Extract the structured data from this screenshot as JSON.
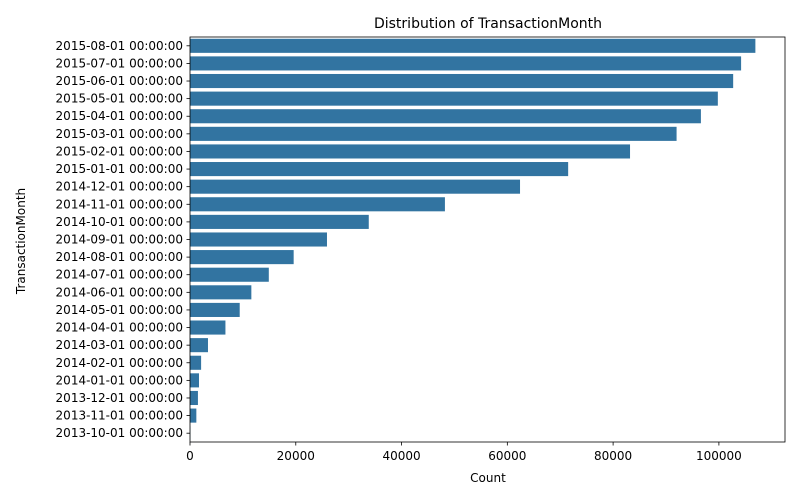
{
  "chart_data": {
    "type": "bar",
    "orientation": "horizontal",
    "title": "Distribution of TransactionMonth",
    "xlabel": "Count",
    "ylabel": "TransactionMonth",
    "xlim": [
      0,
      112500
    ],
    "xticks": [
      0,
      20000,
      40000,
      60000,
      80000,
      100000
    ],
    "grid": false,
    "bar_color": "#3274a1",
    "categories": [
      "2015-08-01 00:00:00",
      "2015-07-01 00:00:00",
      "2015-06-01 00:00:00",
      "2015-05-01 00:00:00",
      "2015-04-01 00:00:00",
      "2015-03-01 00:00:00",
      "2015-02-01 00:00:00",
      "2015-01-01 00:00:00",
      "2014-12-01 00:00:00",
      "2014-11-01 00:00:00",
      "2014-10-01 00:00:00",
      "2014-09-01 00:00:00",
      "2014-08-01 00:00:00",
      "2014-07-01 00:00:00",
      "2014-06-01 00:00:00",
      "2014-05-01 00:00:00",
      "2014-04-01 00:00:00",
      "2014-03-01 00:00:00",
      "2014-02-01 00:00:00",
      "2014-01-01 00:00:00",
      "2013-12-01 00:00:00",
      "2013-11-01 00:00:00",
      "2013-10-01 00:00:00"
    ],
    "values": [
      106900,
      104200,
      102700,
      99800,
      96600,
      92000,
      83200,
      71500,
      62400,
      48200,
      33800,
      25900,
      19600,
      14900,
      11600,
      9400,
      6700,
      3400,
      2100,
      1700,
      1500,
      1200,
      50
    ]
  }
}
